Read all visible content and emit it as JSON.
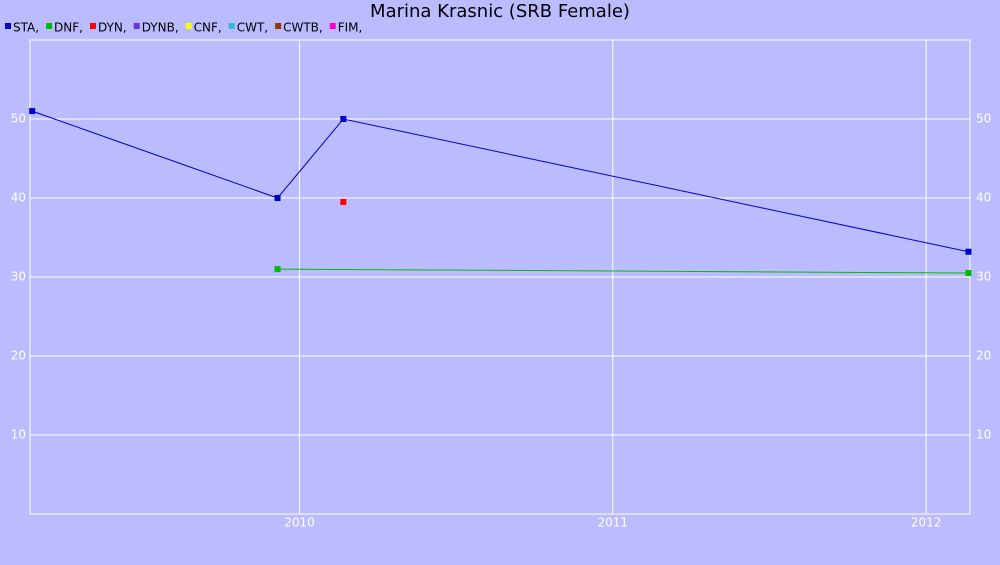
{
  "chart_data": {
    "type": "line",
    "title": "Marina Krasnic (SRB Female)",
    "xlim": [
      2009.14,
      2012.14
    ],
    "xticks": [
      2010,
      2011,
      2012
    ],
    "ylim": [
      0,
      60
    ],
    "yticks": [
      10,
      20,
      30,
      40,
      50
    ],
    "grid": true,
    "series": [
      {
        "name": "STA,",
        "color": "#0000cc",
        "x": [
          2009.147,
          2009.93,
          2010.14,
          2012.135
        ],
        "values": [
          51,
          40,
          50,
          33.2
        ]
      },
      {
        "name": "DNF,",
        "color": "#00bb00",
        "x": [
          2009.93,
          2012.135
        ],
        "values": [
          31,
          30.5
        ]
      },
      {
        "name": "DYN,",
        "color": "#ff0000",
        "x": [
          2010.14
        ],
        "values": [
          39.5
        ]
      },
      {
        "name": "DYNB,",
        "color": "#6633dd",
        "x": [],
        "values": []
      },
      {
        "name": "CNF,",
        "color": "#ffff00",
        "x": [],
        "values": []
      },
      {
        "name": "CWT,",
        "color": "#33bbcc",
        "x": [],
        "values": []
      },
      {
        "name": "CWTB,",
        "color": "#993300",
        "x": [],
        "values": []
      },
      {
        "name": "FIM,",
        "color": "#ff00cc",
        "x": [],
        "values": []
      }
    ]
  }
}
